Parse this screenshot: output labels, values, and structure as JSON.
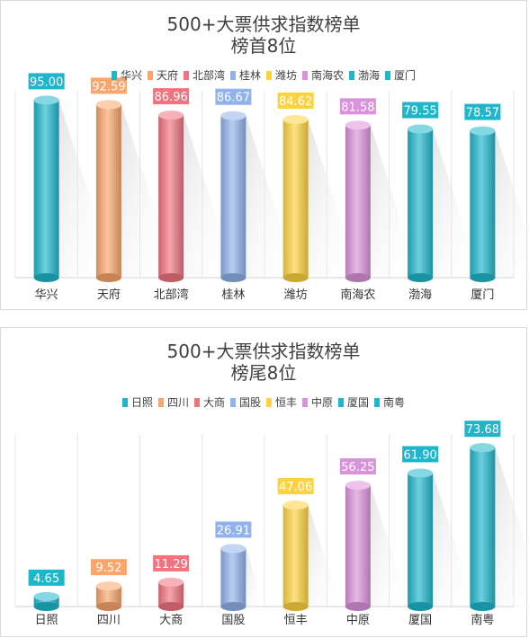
{
  "colors": [
    "#1fb6cc",
    "#f9a56b",
    "#f0737f",
    "#91b2ea",
    "#fdd23f",
    "#da92da",
    "#1fb6cc",
    "#1fb6cc"
  ],
  "chart_data": [
    {
      "type": "bar",
      "title": "500+大票供求指数榜单",
      "subtitle": "榜首8位",
      "categories": [
        "华兴",
        "天府",
        "北部湾",
        "桂林",
        "潍坊",
        "南海农",
        "渤海",
        "厦门"
      ],
      "values": [
        95.0,
        92.59,
        86.96,
        86.67,
        84.62,
        81.58,
        79.55,
        78.57
      ],
      "value_labels": [
        "95.00",
        "92.59",
        "86.96",
        "86.67",
        "84.62",
        "81.58",
        "79.55",
        "78.57"
      ],
      "ylim": [
        0,
        100
      ],
      "legend": "top",
      "grid": true
    },
    {
      "type": "bar",
      "title": "500+大票供求指数榜单",
      "subtitle": "榜尾8位",
      "categories": [
        "日照",
        "四川",
        "大商",
        "国股",
        "恒丰",
        "中原",
        "厦国",
        "南粤"
      ],
      "values": [
        4.65,
        9.52,
        11.29,
        26.91,
        47.06,
        56.25,
        61.9,
        73.68
      ],
      "value_labels": [
        "4.65",
        "9.52",
        "11.29",
        "26.91",
        "47.06",
        "56.25",
        "61.90",
        "73.68"
      ],
      "ylim": [
        0,
        80
      ],
      "legend": "top",
      "grid": true
    }
  ]
}
